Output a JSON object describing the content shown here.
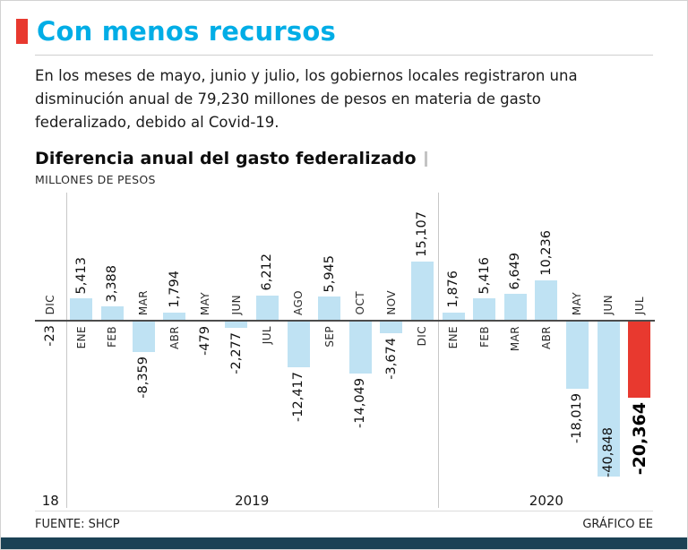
{
  "header": {
    "title": "Con menos recursos",
    "description": "En los meses de mayo, junio y julio, los gobiernos locales registraron una disminución anual de 79,230 millones de pesos en materia de gasto federalizado, debido al Covid-19."
  },
  "colors": {
    "title_accent": "#00ade6",
    "accent_bar": "#e8392f",
    "footer_strip": "#1b4255"
  },
  "chart_data": {
    "type": "bar",
    "title": "Diferencia anual del gasto federalizado",
    "ylabel": "MILLONES DE PESOS",
    "xlabel": "",
    "categories": [
      "DIC",
      "ENE",
      "FEB",
      "MAR",
      "ABR",
      "MAY",
      "JUN",
      "JUL",
      "AGO",
      "SEP",
      "OCT",
      "NOV",
      "DIC",
      "ENE",
      "FEB",
      "MAR",
      "ABR",
      "MAY",
      "JUN",
      "JUL"
    ],
    "values": [
      -23,
      5413,
      3388,
      -8359,
      1794,
      -479,
      -2277,
      6212,
      -12417,
      5945,
      -14049,
      -3674,
      15107,
      1876,
      5416,
      6649,
      10236,
      -18019,
      -40848,
      -20364
    ],
    "value_labels": [
      "-23",
      "5,413",
      "3,388",
      "-8,359",
      "1,794",
      "-479",
      "-2,277",
      "6,212",
      "-12,417",
      "5,945",
      "-14,049",
      "-3,674",
      "15,107",
      "1,876",
      "5,416",
      "6,649",
      "10,236",
      "-18,019",
      "-40,848",
      "-20,364"
    ],
    "year_groups": [
      {
        "label": "18",
        "start": 0,
        "count": 1
      },
      {
        "label": "2019",
        "start": 1,
        "count": 12
      },
      {
        "label": "2020",
        "start": 13,
        "count": 7
      }
    ],
    "highlight_index": 19,
    "ylim": [
      -40848,
      15107
    ],
    "grid": false,
    "legend": false,
    "colors": {
      "bar": "#bfe2f3",
      "highlight": "#e8392f"
    }
  },
  "footer": {
    "source": "FUENTE: SHCP",
    "credit": "GRÁFICO EE"
  }
}
